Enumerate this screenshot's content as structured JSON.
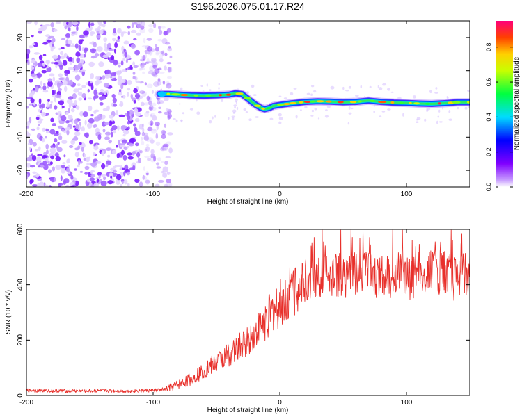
{
  "chart_data": [
    {
      "type": "heatmap",
      "title": "S196.2026.075.01.17.R24",
      "xlabel": "Height of straight line (km)",
      "ylabel": "Frequency (Hz)",
      "xlim": [
        -200,
        150
      ],
      "ylim": [
        -25,
        25
      ],
      "x_ticks": [
        -200,
        -100,
        0,
        100
      ],
      "y_ticks": [
        20,
        10,
        0,
        -10,
        -20
      ],
      "noise_region": {
        "x_start": -200,
        "x_end": -90,
        "amplitude_range": [
          0.0,
          0.1
        ]
      },
      "ridge": {
        "description": "narrow high-amplitude frequency track",
        "x": [
          -95,
          -88,
          -80,
          -70,
          -60,
          -50,
          -40,
          -35,
          -30,
          -25,
          -20,
          -15,
          -12,
          -8,
          -5,
          0,
          10,
          20,
          30,
          40,
          50,
          60,
          70,
          80,
          90,
          100,
          110,
          120,
          130,
          140,
          150
        ],
        "freq": [
          3,
          3,
          2.8,
          2.6,
          2.5,
          2.6,
          2.8,
          3.2,
          3.0,
          1.5,
          0,
          -1.2,
          -1.6,
          -1.2,
          -0.6,
          -0.3,
          0.2,
          0.6,
          0.8,
          0.7,
          0.5,
          0.6,
          1.0,
          0.6,
          0.4,
          0.3,
          0.1,
          0.0,
          0.2,
          0.5,
          0.5
        ],
        "peak_amplitude": 0.95
      },
      "colorbar": {
        "label": "Normalized spectral amplitude",
        "range": [
          0.0,
          0.95
        ],
        "ticks": [
          0.0,
          0.2,
          0.4,
          0.6,
          0.8
        ]
      }
    },
    {
      "type": "line",
      "xlabel": "Height of straight line (km)",
      "ylabel": "SNR (10 * v/v)",
      "xlim": [
        -200,
        150
      ],
      "ylim": [
        0,
        600
      ],
      "x_ticks": [
        -200,
        -100,
        0,
        100
      ],
      "y_ticks": [
        0,
        200,
        400,
        600
      ],
      "color": "#e8302b",
      "series": [
        {
          "name": "SNR",
          "x": [
            -200,
            -180,
            -160,
            -140,
            -120,
            -100,
            -90,
            -80,
            -70,
            -60,
            -50,
            -40,
            -30,
            -20,
            -10,
            0,
            10,
            20,
            30,
            40,
            60,
            80,
            100,
            120,
            140,
            150
          ],
          "y": [
            18,
            17,
            16,
            17,
            16,
            18,
            22,
            40,
            60,
            90,
            120,
            150,
            180,
            220,
            280,
            330,
            380,
            420,
            430,
            435,
            440,
            440,
            440,
            445,
            440,
            440
          ]
        }
      ]
    }
  ]
}
